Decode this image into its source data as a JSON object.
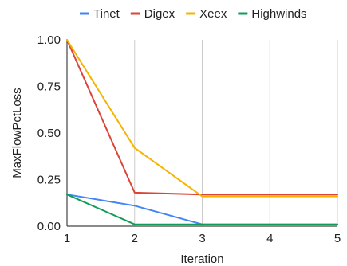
{
  "chart_data": {
    "type": "line",
    "title": "",
    "xlabel": "Iteration",
    "ylabel": "MaxFlowPctLoss",
    "x": [
      1,
      2,
      3,
      4,
      5
    ],
    "xlim": [
      1,
      5
    ],
    "ylim": [
      0,
      1
    ],
    "x_ticks": [
      "1",
      "2",
      "3",
      "4",
      "5"
    ],
    "y_ticks": [
      "0.00",
      "0.25",
      "0.50",
      "0.75",
      "1.00"
    ],
    "grid": "vertical",
    "legend_position": "top",
    "series": [
      {
        "name": "Tinet",
        "color": "#4285f4",
        "values": [
          0.17,
          0.11,
          0.01,
          0.01,
          0.01
        ]
      },
      {
        "name": "Digex",
        "color": "#db4437",
        "values": [
          1.0,
          0.18,
          0.17,
          0.17,
          0.17
        ]
      },
      {
        "name": "Xeex",
        "color": "#f4b400",
        "values": [
          1.0,
          0.42,
          0.16,
          0.16,
          0.16
        ]
      },
      {
        "name": "Highwinds",
        "color": "#0f9d58",
        "values": [
          0.17,
          0.01,
          0.01,
          0.01,
          0.01
        ]
      }
    ]
  }
}
